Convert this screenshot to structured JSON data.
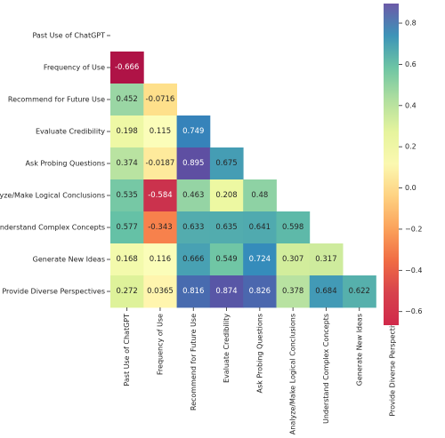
{
  "chart_data": {
    "type": "heatmap",
    "title": "",
    "xlabel": "",
    "ylabel": "",
    "variables": [
      "Past Use of ChatGPT",
      "Frequency of Use",
      "Recommend for Future Use",
      "Evaluate Credibility",
      "Ask Probing Questions",
      "Analyze/Make Logical Conclusions",
      "Understand Complex Concepts",
      "Generate New Ideas",
      "Provide Diverse Perspectives"
    ],
    "matrix_lower": [
      [],
      [
        "-0.666"
      ],
      [
        "0.452",
        "-0.0716"
      ],
      [
        "0.198",
        "0.115",
        "0.749"
      ],
      [
        "0.374",
        "-0.0187",
        "0.895",
        "0.675"
      ],
      [
        "0.535",
        "-0.584",
        "0.463",
        "0.208",
        "0.48"
      ],
      [
        "0.577",
        "-0.343",
        "0.633",
        "0.635",
        "0.641",
        "0.598"
      ],
      [
        "0.168",
        "0.116",
        "0.666",
        "0.549",
        "0.724",
        "0.307",
        "0.317"
      ],
      [
        "0.272",
        "0.0365",
        "0.816",
        "0.874",
        "0.826",
        "0.378",
        "0.684",
        "0.622"
      ]
    ],
    "mask": "upper triangle and diagonal",
    "colormap": "Spectral",
    "vmin": -0.666,
    "vmax": 0.895,
    "colorbar_ticks": [
      "0.8",
      "0.6",
      "0.4",
      "0.2",
      "0.0",
      "−0.2",
      "−0.4",
      "−0.6"
    ],
    "legend_placement": "right"
  }
}
